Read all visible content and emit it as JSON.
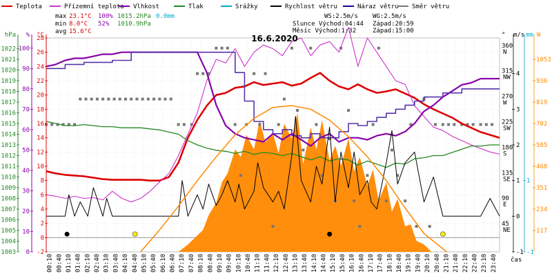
{
  "chart_data": {
    "type": "line",
    "title": "16.6.2020",
    "legend": [
      {
        "label": "Teplota",
        "color": "#dd0000"
      },
      {
        "label": "Přízemní teplota",
        "color": "#cc33cc"
      },
      {
        "label": "Vlhkost",
        "color": "#8800aa"
      },
      {
        "label": "Tlak",
        "color": "#228822"
      },
      {
        "label": "Srážky",
        "color": "#00aacc"
      },
      {
        "label": "Rychlost větru",
        "color": "#000000"
      },
      {
        "label": "Náraz větru",
        "color": "#220088"
      },
      {
        "label": "Směr větru",
        "color": "#777777"
      }
    ],
    "stats": {
      "max": {
        "label": "max",
        "temp": "23.1°C",
        "hum": "100%",
        "press": "1015.2hPa",
        "rain": "0.0mm"
      },
      "min": {
        "label": "min",
        "temp": "8.0°C",
        "hum": "52%",
        "press": "1010.9hPa"
      },
      "avg": {
        "label": "avg",
        "temp": "15.6°C"
      }
    },
    "info": {
      "ws": "WS:2.5m/s",
      "wg": "WG:2.5m/s",
      "sun_rise": "Slunce Východ:04:44",
      "sun_set": "Západ:20:59",
      "moon_rise": "Měsíc  Východ:1:32",
      "moon_set": "Západ:15:00"
    },
    "axes": {
      "hpa": {
        "unit": "hPa",
        "ticks": [
          1003,
          1004,
          1005,
          1006,
          1007,
          1008,
          1009,
          1010,
          1011,
          1012,
          1013,
          1014,
          1015,
          1016,
          1017,
          1018,
          1019,
          1020,
          1021,
          1022
        ],
        "range": [
          1003,
          1023
        ]
      },
      "pct": {
        "unit": "%",
        "ticks": [
          0,
          10,
          20,
          30,
          40,
          50,
          60,
          70,
          80,
          90,
          100
        ],
        "range": [
          0,
          105
        ]
      },
      "temp": {
        "unit": "°C",
        "ticks": [
          -2,
          0,
          2,
          4,
          6,
          8,
          10,
          12,
          14,
          16,
          18,
          20,
          22,
          24,
          26,
          28
        ],
        "range": [
          -2,
          28
        ]
      },
      "dir": {
        "unit": "°",
        "ticks": [
          {
            "v": 45,
            "l": "NE"
          },
          {
            "v": 90,
            "l": "E"
          },
          {
            "v": 135,
            "l": "SE"
          },
          {
            "v": 180,
            "l": "S"
          },
          {
            "v": 225,
            "l": "SW"
          },
          {
            "v": 270,
            "l": "W"
          },
          {
            "v": 315,
            "l": "NW"
          },
          {
            "v": 360,
            "l": "N"
          }
        ],
        "range": [
          0,
          378
        ]
      },
      "ms": {
        "unit": "m/s",
        "ticks": [
          -1,
          0,
          1,
          2,
          3,
          4
        ],
        "range": [
          -1,
          5
        ]
      },
      "mm": {
        "unit": "mm",
        "ticks": [
          -1,
          1
        ],
        "range": [
          -1,
          5
        ]
      },
      "wm2": {
        "unit": "W",
        "ticks": [
          117,
          234,
          351,
          468,
          585,
          702,
          819,
          936,
          1053
        ],
        "range": [
          0,
          1170
        ]
      },
      "time": {
        "unit": "čas",
        "ticks": [
          "00:10",
          "00:40",
          "01:10",
          "01:40",
          "02:10",
          "02:40",
          "03:10",
          "03:40",
          "04:10",
          "04:40",
          "05:10",
          "05:40",
          "06:10",
          "06:40",
          "07:10",
          "07:40",
          "08:10",
          "08:40",
          "09:10",
          "09:40",
          "10:10",
          "10:40",
          "11:10",
          "11:40",
          "12:10",
          "12:40",
          "13:10",
          "13:40",
          "14:10",
          "14:40",
          "15:10",
          "15:40",
          "16:10",
          "16:40",
          "17:10",
          "17:40",
          "18:10",
          "18:40",
          "19:10",
          "19:40",
          "20:10",
          "20:40",
          "21:10",
          "21:40",
          "22:10",
          "22:40",
          "23:10",
          "23:40"
        ]
      }
    },
    "series": [
      {
        "name": "Teplota",
        "axis": "temp",
        "color": "#dd0000",
        "width": 2.6,
        "x": [
          0.0,
          0.5,
          1,
          1.5,
          2,
          2.5,
          3,
          3.5,
          4,
          4.5,
          5,
          5.5,
          6,
          6.5,
          7,
          7.5,
          8,
          8.5,
          9,
          9.5,
          10,
          10.5,
          11,
          11.5,
          12,
          12.5,
          13,
          13.5,
          14,
          14.5,
          15,
          15.5,
          16,
          16.5,
          17,
          17.5,
          18,
          18.5,
          19,
          19.5,
          20,
          20.5,
          21,
          21.5,
          22,
          22.5,
          23,
          23.5,
          24
        ],
        "y": [
          9.3,
          9.0,
          8.8,
          8.7,
          8.6,
          8.4,
          8.2,
          8.1,
          8.1,
          8.1,
          8.1,
          8.0,
          8.0,
          8.5,
          10.5,
          14.0,
          16.5,
          18.5,
          20.0,
          20.3,
          21.0,
          21.2,
          21.8,
          21.4,
          21.6,
          21.8,
          21.3,
          21.6,
          22.4,
          23.1,
          22.0,
          21.2,
          20.8,
          21.5,
          20.8,
          20.3,
          20.5,
          20.8,
          20.2,
          19.6,
          18.7,
          18.0,
          17.4,
          16.8,
          16.0,
          15.4,
          14.8,
          14.4,
          14.0
        ]
      },
      {
        "name": "Přízemní teplota",
        "axis": "temp",
        "color": "#cc33cc",
        "width": 1.1,
        "x": [
          0.0,
          0.5,
          1,
          1.5,
          2,
          2.5,
          3,
          3.5,
          4,
          4.5,
          5,
          5.5,
          6,
          6.5,
          7,
          7.5,
          8,
          8.5,
          9,
          9.5,
          10,
          10.5,
          11,
          11.5,
          12,
          12.5,
          13,
          13.5,
          14,
          14.5,
          15,
          15.5,
          16,
          16.5,
          17,
          17.5,
          18,
          18.5,
          19,
          19.5,
          20,
          20.5,
          21,
          21.5,
          22,
          22.5,
          23,
          23.5,
          24
        ],
        "y": [
          6.0,
          5.8,
          5.5,
          5.8,
          5.5,
          5.6,
          5.3,
          6.5,
          5.5,
          5.0,
          5.5,
          6.5,
          7.8,
          9.0,
          11.5,
          14.5,
          17.5,
          22.0,
          25.0,
          24.5,
          26.5,
          24.0,
          26.0,
          27.0,
          26.5,
          25.5,
          27.5,
          28.0,
          25.5,
          27.0,
          27.5,
          26.0,
          29.5,
          24.0,
          28.0,
          26.0,
          24.0,
          22.0,
          21.5,
          18.5,
          17.0,
          15.5,
          15.0,
          14.2,
          13.6,
          13.0,
          12.5,
          12.0,
          11.7
        ]
      },
      {
        "name": "Vlhkost",
        "axis": "pct",
        "color": "#8800aa",
        "width": 2.2,
        "x": [
          0.0,
          0.5,
          1,
          1.5,
          2,
          2.5,
          3,
          3.5,
          4,
          4.5,
          5,
          5.5,
          6,
          6.5,
          7,
          7.5,
          8,
          8.5,
          9,
          9.5,
          10,
          10.5,
          11,
          11.5,
          12,
          12.5,
          13,
          13.5,
          14,
          14.5,
          15,
          15.5,
          16,
          16.5,
          17,
          17.5,
          18,
          18.5,
          19,
          19.5,
          20,
          20.5,
          21,
          21.5,
          22,
          22.5,
          23,
          23.5,
          24
        ],
        "y": [
          91,
          92,
          94,
          95,
          95,
          96,
          97,
          97,
          98,
          98,
          98,
          98,
          98,
          98,
          98,
          98,
          98,
          88,
          72,
          62,
          58,
          56,
          55,
          54,
          58,
          55,
          58,
          55,
          52,
          56,
          58,
          54,
          56,
          56,
          55,
          57,
          58,
          57,
          59,
          63,
          69,
          72,
          76,
          79,
          82,
          83,
          85,
          85,
          85
        ]
      },
      {
        "name": "Tlak",
        "axis": "hpa",
        "color": "#228822",
        "width": 1.3,
        "x": [
          0.0,
          0.5,
          1,
          1.5,
          2,
          2.5,
          3,
          3.5,
          4,
          4.5,
          5,
          5.5,
          6,
          6.5,
          7,
          7.5,
          8,
          8.5,
          9,
          9.5,
          10,
          10.5,
          11,
          11.5,
          12,
          12.5,
          13,
          13.5,
          14,
          14.5,
          15,
          15.5,
          16,
          16.5,
          17,
          17.5,
          18,
          18.5,
          19,
          19.5,
          20,
          20.5,
          21,
          21.5,
          22,
          22.5,
          23,
          23.5,
          24
        ],
        "y": [
          1015.2,
          1015.0,
          1014.8,
          1014.8,
          1014.9,
          1014.8,
          1014.7,
          1014.7,
          1014.6,
          1014.6,
          1014.6,
          1014.5,
          1014.4,
          1014.2,
          1014.0,
          1013.4,
          1013.0,
          1012.7,
          1012.5,
          1012.4,
          1012.2,
          1012.4,
          1012.1,
          1012.3,
          1012.2,
          1012.0,
          1012.2,
          1011.9,
          1011.6,
          1011.9,
          1011.5,
          1011.7,
          1011.6,
          1011.1,
          1011.5,
          1011.2,
          1010.9,
          1011.3,
          1011.2,
          1011.7,
          1011.8,
          1012.0,
          1012.0,
          1012.3,
          1012.6,
          1012.9,
          1012.9,
          1013.0,
          1013.0
        ]
      },
      {
        "name": "Náraz větru",
        "axis": "pct",
        "color": "#5533aa",
        "width": 1.6,
        "step": true,
        "x": [
          0.0,
          1.0,
          2.0,
          3.5,
          4.5,
          9.5,
          10,
          10.5,
          11,
          11.5,
          12,
          12.5,
          13,
          13.5,
          14,
          14.5,
          15,
          15.5,
          16,
          16.5,
          17,
          17.5,
          18,
          18.5,
          19,
          19.5,
          20,
          21,
          22,
          23,
          24
        ],
        "y": [
          90,
          92,
          93,
          94,
          98,
          98,
          88,
          74,
          64,
          60,
          58,
          60,
          57,
          56,
          58,
          56,
          56,
          59,
          63,
          62,
          64,
          66,
          68,
          70,
          72,
          74,
          76,
          78,
          80,
          80,
          80
        ]
      },
      {
        "name": "Rychlost větru",
        "axis": "ms",
        "color": "#000000",
        "width": 1.0,
        "x": [
          0.0,
          0.5,
          1.0,
          1.2,
          1.5,
          1.8,
          2.2,
          2.5,
          3.0,
          3.2,
          3.5,
          4.0,
          4.5,
          5.0,
          5.5,
          6.0,
          6.5,
          7.0,
          7.2,
          7.5,
          8.0,
          8.3,
          8.6,
          9.0,
          9.3,
          9.6,
          10.0,
          10.2,
          10.5,
          11.0,
          11.2,
          11.5,
          12.0,
          12.3,
          12.6,
          13.0,
          13.2,
          13.5,
          14.0,
          14.3,
          14.6,
          15.0,
          15.3,
          15.6,
          16.0,
          16.3,
          16.6,
          17.0,
          17.2,
          17.5,
          18.0,
          18.3,
          18.6,
          19.0,
          19.5,
          20.0,
          20.5,
          21.0,
          21.5,
          22.0,
          22.5,
          23.0,
          23.5,
          24.0
        ],
        "y": [
          0,
          0,
          0,
          0.6,
          0,
          0.4,
          0,
          0.8,
          0,
          0.5,
          0,
          0,
          0,
          0,
          0,
          0,
          0,
          0,
          1.0,
          0,
          0.6,
          0.2,
          0.9,
          0.3,
          0.6,
          1.0,
          0.4,
          0.9,
          0.2,
          0.7,
          1.5,
          0.8,
          0.4,
          0.7,
          0.2,
          1.7,
          2.8,
          1.0,
          0.4,
          1.4,
          0.9,
          2.5,
          0.4,
          1.8,
          0.8,
          1.8,
          0.6,
          1.0,
          0.4,
          0.2,
          1.5,
          2.4,
          0.9,
          1.5,
          1.8,
          0.4,
          1.1,
          0.0,
          0.0,
          0.0,
          0.0,
          0.0,
          0.5,
          0.0
        ]
      },
      {
        "name": "Sluneční záření",
        "axis": "wm2",
        "color": "#ff8800",
        "width": 1.5,
        "x": [
          5.0,
          6,
          7,
          8,
          9,
          10,
          11,
          12,
          13,
          14,
          15,
          16,
          17,
          18,
          19,
          20,
          21.2
        ],
        "y": [
          0,
          120,
          250,
          390,
          520,
          640,
          730,
          790,
          800,
          780,
          720,
          630,
          520,
          390,
          240,
          100,
          0
        ]
      }
    ],
    "radiation_area": {
      "name": "Sluneční záření",
      "x": [
        7.0,
        7.5,
        8.0,
        8.3,
        8.6,
        9.0,
        9.3,
        9.6,
        10.0,
        10.3,
        10.6,
        11.0,
        11.3,
        11.6,
        12.0,
        12.3,
        12.6,
        13.0,
        13.3,
        13.6,
        14.0,
        14.3,
        14.6,
        15.0,
        15.3,
        15.6,
        16.0,
        16.3,
        16.6,
        17.0,
        17.3,
        17.6,
        18.0,
        18.3,
        18.6,
        19.0,
        19.3,
        19.6,
        20.0,
        20.4
      ],
      "y": [
        0,
        40,
        90,
        120,
        200,
        270,
        380,
        430,
        560,
        520,
        640,
        560,
        720,
        600,
        650,
        540,
        700,
        620,
        760,
        480,
        680,
        560,
        720,
        500,
        580,
        470,
        620,
        440,
        520,
        360,
        450,
        280,
        380,
        220,
        290,
        140,
        150,
        60,
        40,
        0
      ]
    },
    "dir_points": {
      "x": [
        0.0,
        0.3,
        0.6,
        0.9,
        1.2,
        1.5,
        1.8,
        2.1,
        2.4,
        2.7,
        3.0,
        3.3,
        3.6,
        3.9,
        4.2,
        4.5,
        4.8,
        5.1,
        5.4,
        5.7,
        6.0,
        6.3,
        6.6,
        7.0,
        7.3,
        7.7,
        8.0,
        8.3,
        8.6,
        9.0,
        9.3,
        9.6,
        10.0,
        10.3,
        10.6,
        11.0,
        11.3,
        11.6,
        12.0,
        12.3,
        12.6,
        13.0,
        13.3,
        13.6,
        14.0,
        14.3,
        14.6,
        15.0,
        15.3,
        15.6,
        16.0,
        16.3,
        16.6,
        17.0,
        17.3,
        17.6,
        18.0,
        18.3,
        18.6,
        19.0,
        19.3,
        19.6,
        20.0,
        20.3,
        20.6,
        21.0,
        21.3,
        21.6,
        22.0,
        22.3,
        22.6,
        23.0,
        23.3,
        23.6
      ],
      "y": [
        225,
        225,
        225,
        225,
        225,
        225,
        270,
        270,
        270,
        270,
        270,
        270,
        270,
        270,
        270,
        270,
        270,
        270,
        270,
        270,
        270,
        270,
        270,
        225,
        225,
        225,
        315,
        315,
        315,
        360,
        360,
        360,
        225,
        135,
        225,
        315,
        225,
        315,
        45,
        225,
        270,
        360,
        250,
        180,
        360,
        225,
        135,
        200,
        90,
        360,
        250,
        90,
        45,
        135,
        225,
        360,
        90,
        180,
        135,
        90,
        225,
        45,
        270,
        45,
        225,
        225,
        225,
        225,
        225,
        225,
        225,
        225,
        225,
        225
      ]
    },
    "markers": [
      {
        "x": 1.1,
        "kind": "moonrise"
      },
      {
        "x": 4.7,
        "kind": "sunrise"
      },
      {
        "x": 15.0,
        "kind": "moonset"
      },
      {
        "x": 21.0,
        "kind": "sunset"
      }
    ]
  }
}
